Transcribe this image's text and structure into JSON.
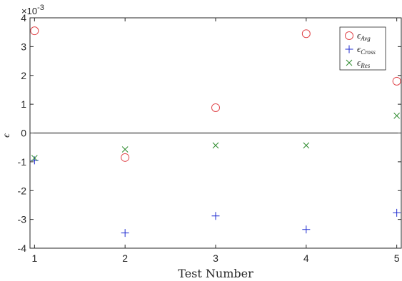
{
  "chart_data": {
    "type": "scatter",
    "x": [
      1,
      2,
      3,
      4,
      5
    ],
    "xlabel": "Test Number",
    "ylabel": "ϵ",
    "xlim": [
      0.95,
      5.05
    ],
    "ylim": [
      -4,
      4
    ],
    "xticks": [
      "1",
      "2",
      "3",
      "4",
      "5"
    ],
    "yticks": [
      "-4",
      "-3",
      "-2",
      "-1",
      "0",
      "1",
      "2",
      "3",
      "4"
    ],
    "y_scale_exponent": "×10",
    "y_scale_power": "-3",
    "legend_position": "top-right",
    "zero_line": true,
    "grid": false,
    "series": [
      {
        "name_base": "ϵ",
        "name_sub": "Avg",
        "marker": "circle",
        "color": "#e0474c",
        "values": [
          3.55,
          -0.85,
          0.88,
          3.45,
          1.8
        ]
      },
      {
        "name_base": "ϵ",
        "name_sub": "Cross",
        "marker": "plus",
        "color": "#1f2bd0",
        "values": [
          -0.95,
          -3.47,
          -2.88,
          -3.35,
          -2.77
        ]
      },
      {
        "name_base": "ϵ",
        "name_sub": "Res",
        "marker": "x",
        "color": "#2e8b2e",
        "values": [
          -0.87,
          -0.57,
          -0.43,
          -0.43,
          0.6
        ]
      }
    ]
  }
}
